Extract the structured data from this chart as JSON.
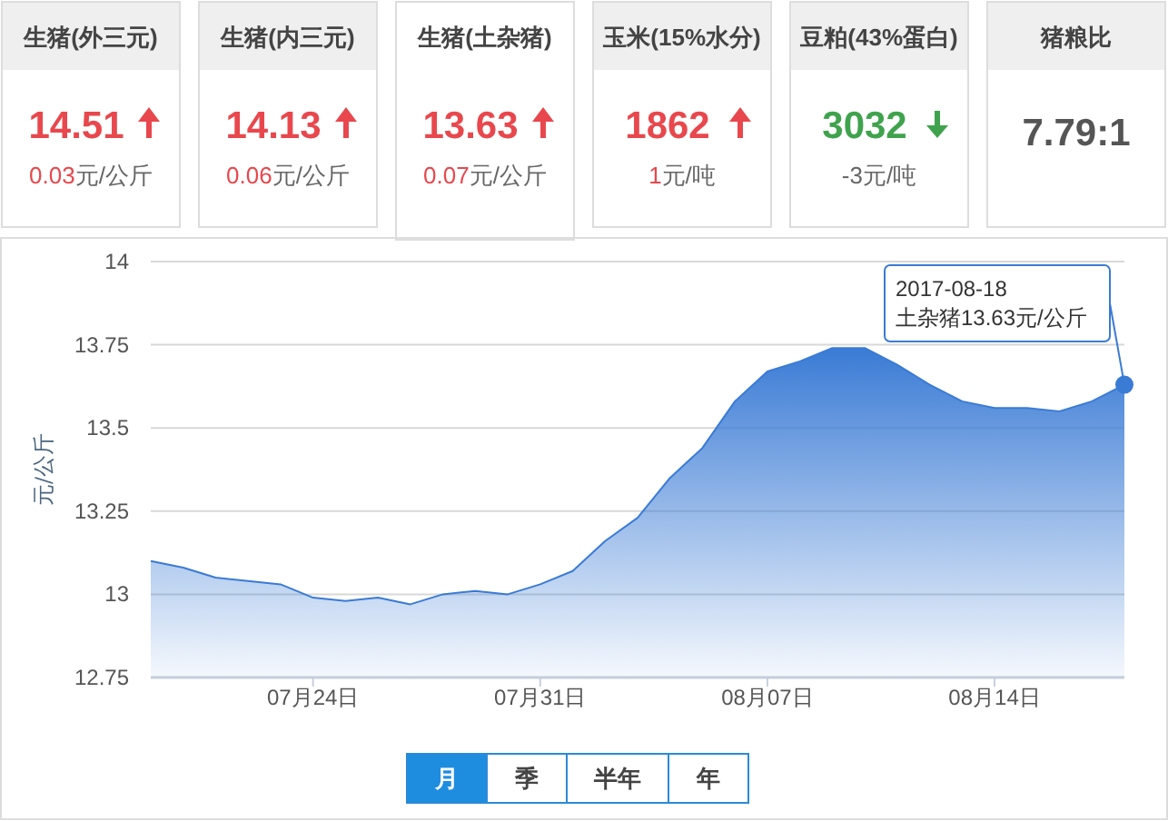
{
  "chart_data": [
    {
      "type": "other",
      "categories": [
        "生猪(外三元)",
        "生猪(内三元)",
        "生猪(土杂猪)",
        "玉米(15%水分)",
        "豆粕(43%蛋白)",
        "猪粮比"
      ],
      "annotations": [
        "14.51",
        "0.03元/公斤",
        "14.13",
        "0.06元/公斤",
        "13.63",
        "0.07元/公斤",
        "1862",
        "1元/吨",
        "3032",
        "-3元/吨",
        "7.79:1"
      ]
    },
    {
      "type": "area",
      "ylabel": "元/公斤",
      "x": [
        "2017-07-19",
        "2017-07-20",
        "2017-07-21",
        "2017-07-22",
        "2017-07-23",
        "2017-07-24",
        "2017-07-25",
        "2017-07-26",
        "2017-07-27",
        "2017-07-28",
        "2017-07-29",
        "2017-07-30",
        "2017-07-31",
        "2017-08-01",
        "2017-08-02",
        "2017-08-03",
        "2017-08-04",
        "2017-08-05",
        "2017-08-06",
        "2017-08-07",
        "2017-08-08",
        "2017-08-09",
        "2017-08-10",
        "2017-08-11",
        "2017-08-12",
        "2017-08-13",
        "2017-08-14",
        "2017-08-15",
        "2017-08-16",
        "2017-08-17",
        "2017-08-18"
      ],
      "series": [
        {
          "color": "#3a7bd5",
          "values": [
            13.1,
            13.08,
            13.05,
            13.04,
            13.03,
            12.99,
            12.98,
            12.99,
            12.97,
            13.0,
            13.01,
            13.0,
            13.03,
            13.07,
            13.16,
            13.23,
            13.35,
            13.44,
            13.58,
            13.67,
            13.7,
            13.74,
            13.74,
            13.69,
            13.63,
            13.58,
            13.56,
            13.56,
            13.55,
            13.58,
            13.63
          ]
        }
      ],
      "xlim": [
        "2017-07-19",
        "2017-08-18"
      ],
      "xticks": [
        {
          "value": "2017-07-24",
          "label": "07月24日"
        },
        {
          "value": "2017-07-31",
          "label": "07月31日"
        },
        {
          "value": "2017-08-07",
          "label": "08月07日"
        },
        {
          "value": "2017-08-14",
          "label": "08月14日"
        }
      ],
      "ylim": [
        12.75,
        14
      ],
      "yticks": [
        12.75,
        13,
        13.25,
        13.5,
        13.75,
        14
      ],
      "grid": "y",
      "annotations": [
        {
          "text": "2017-08-18\n土杂猪13.63元/公斤",
          "x": "2017-08-18",
          "y": 13.63
        }
      ]
    },
    {
      "type": "other",
      "categories": [
        "月",
        "季",
        "半年",
        "年"
      ]
    }
  ]
}
